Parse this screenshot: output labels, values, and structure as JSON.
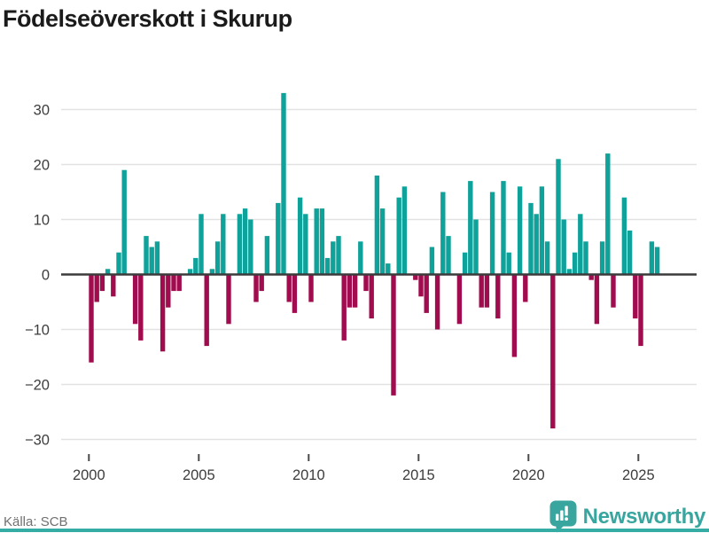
{
  "title": "Födelseöverskott i Skurup",
  "footer": {
    "source_label": "Källa: SCB",
    "logo_text": "Newsworthy"
  },
  "colors": {
    "positive": "#0ea29a",
    "negative": "#a10c4e",
    "grid": "#e2e2e2",
    "zero_line": "#3b3b3b",
    "axis_text": "#3d3d3d",
    "muted_text": "#707070",
    "title_text": "#1b1b1b",
    "brand": "#38a59e"
  },
  "chart_data": {
    "type": "bar",
    "title": "Födelseöverskott i Skurup",
    "xlabel": "",
    "ylabel": "",
    "ylim": [
      -30,
      30
    ],
    "grid": true,
    "legend": "none",
    "y_ticks": [
      30,
      20,
      10,
      0,
      -10,
      -20,
      -30
    ],
    "y_tick_labels": [
      "30",
      "20",
      "10",
      "0",
      "−10",
      "−20",
      "−30"
    ],
    "x_tick_labels": [
      "2000",
      "2005",
      "2010",
      "2015",
      "2020",
      "2025"
    ],
    "frequency": "quarterly",
    "start_period": "2000-Q1",
    "end_period": "2025-Q4",
    "series": [
      {
        "name": "Födelseöverskott",
        "values": [
          -16,
          -5,
          -3,
          1,
          -4,
          4,
          19,
          0,
          -9,
          -12,
          7,
          5,
          6,
          -14,
          -6,
          -3,
          -3,
          0,
          1,
          3,
          11,
          -13,
          1,
          6,
          11,
          -9,
          0,
          11,
          12,
          10,
          -5,
          -3,
          7,
          0,
          13,
          33,
          -5,
          -7,
          14,
          11,
          -5,
          12,
          12,
          3,
          6,
          7,
          -12,
          -6,
          -6,
          6,
          -3,
          -8,
          18,
          12,
          2,
          -22,
          14,
          16,
          0,
          -1,
          -4,
          -7,
          5,
          -10,
          15,
          7,
          0,
          -9,
          4,
          17,
          10,
          -6,
          -6,
          15,
          -8,
          17,
          4,
          -15,
          16,
          -5,
          13,
          11,
          16,
          6,
          -28,
          21,
          10,
          1,
          4,
          11,
          6,
          -1,
          -9,
          6,
          22,
          -6,
          0,
          14,
          8,
          -8,
          -13,
          0,
          6,
          5
        ]
      }
    ]
  }
}
